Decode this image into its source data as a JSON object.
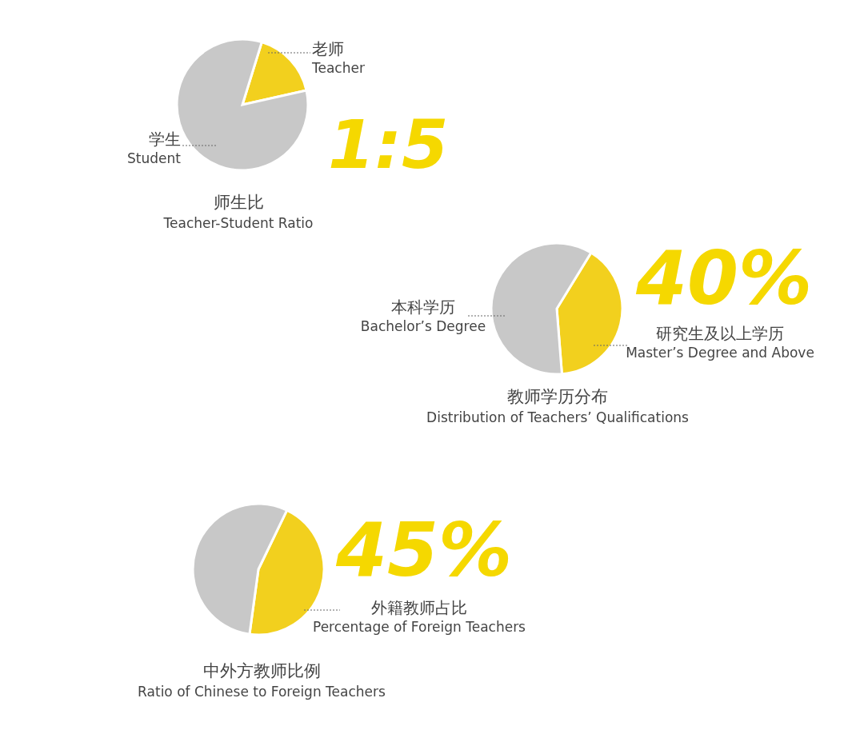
{
  "chart_data": [
    {
      "type": "pie",
      "title": "师生比",
      "subtitle": "Teacher-Student Ratio",
      "categories": [
        "老师\nTeacher",
        "学生\nStudent"
      ],
      "values": [
        16.7,
        83.3
      ],
      "colors": [
        "#f2d01e",
        "#c8c8c8"
      ],
      "annotations": [
        "1:5"
      ]
    },
    {
      "type": "pie",
      "title": "教师学历分布",
      "subtitle": "Distribution of Teachers’ Qualifications",
      "categories": [
        "研究生及以上学历\nMaster’s Degree and Above",
        "本科学历\nBachelor’s Degree"
      ],
      "values": [
        40,
        60
      ],
      "colors": [
        "#f2d01e",
        "#c8c8c8"
      ],
      "annotations": [
        "40%"
      ]
    },
    {
      "type": "pie",
      "title": "中外方教师比例",
      "subtitle": "Ratio of Chinese to Foreign Teachers",
      "categories": [
        "外籍教师占比\nPercentage of Foreign Teachers",
        null
      ],
      "values": [
        45,
        55
      ],
      "colors": [
        "#f2d01e",
        "#c8c8c8"
      ],
      "annotations": [
        "45%"
      ]
    }
  ]
}
